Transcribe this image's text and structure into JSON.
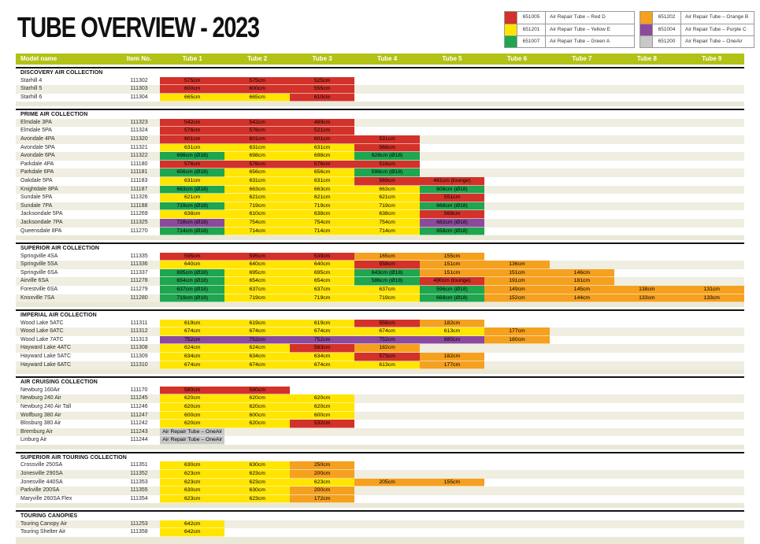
{
  "title": "TUBE OVERVIEW - 2023",
  "colors": {
    "red": "#d23229",
    "yellow": "#ffe500",
    "green": "#1fa64f",
    "orange": "#f5a01e",
    "purple": "#8c4a9c",
    "grey": "#c8c8c8",
    "header_bar": "#b2c216",
    "row_shade": "#efeee0",
    "section_gap": "#eae9d8"
  },
  "legend": [
    {
      "code": "651005",
      "label": "Air Repair Tube – Red D",
      "color": "red"
    },
    {
      "code": "651201",
      "label": "Air Repair Tube – Yellow E",
      "color": "yellow"
    },
    {
      "code": "651007",
      "label": "Air Repair Tube – Green A",
      "color": "green"
    },
    {
      "code": "651202",
      "label": "Air Repair Tube – Orange B",
      "color": "orange"
    },
    {
      "code": "651004",
      "label": "Air Repair Tube – Purple C",
      "color": "purple"
    },
    {
      "code": "651200",
      "label": "Air Repair Tube – OneAir",
      "color": "grey"
    }
  ],
  "columns": [
    "Model name",
    "Item No.",
    "Tube 1",
    "Tube 2",
    "Tube 3",
    "Tube 4",
    "Tube 5",
    "Tube 6",
    "Tube 7",
    "Tube 8",
    "Tube 9"
  ],
  "sections": [
    {
      "name": "DISCOVERY AIR COLLECTION",
      "stripe": "white",
      "rows": [
        {
          "m": "Starhill 4",
          "i": "111302",
          "t": [
            [
              "575cm",
              "red"
            ],
            [
              "575cm",
              "red"
            ],
            [
              "525cm",
              "red"
            ]
          ]
        },
        {
          "m": "Starhill 5",
          "i": "111303",
          "t": [
            [
              "600cm",
              "red"
            ],
            [
              "600cm",
              "red"
            ],
            [
              "555cm",
              "red"
            ]
          ]
        },
        {
          "m": "Starhill 6",
          "i": "111304",
          "t": [
            [
              "665cm",
              "yellow"
            ],
            [
              "665cm",
              "yellow"
            ],
            [
              "610cm",
              "red"
            ]
          ]
        }
      ]
    },
    {
      "name": "PRIME AIR COLLECTION",
      "stripe": "shade",
      "rows": [
        {
          "m": "Elmdale 3PA",
          "i": "111323",
          "t": [
            [
              "542cm",
              "red"
            ],
            [
              "542cm",
              "red"
            ],
            [
              "489cm",
              "red"
            ]
          ]
        },
        {
          "m": "Elmdale 5PA",
          "i": "111324",
          "t": [
            [
              "576cm",
              "red"
            ],
            [
              "576cm",
              "red"
            ],
            [
              "521cm",
              "red"
            ]
          ]
        },
        {
          "m": "Avondale 4PA",
          "i": "111320",
          "t": [
            [
              "601cm",
              "red"
            ],
            [
              "601cm",
              "red"
            ],
            [
              "601cm",
              "red"
            ],
            [
              "531cm",
              "red"
            ]
          ]
        },
        {
          "m": "Avondale 5PA",
          "i": "111321",
          "t": [
            [
              "631cm",
              "yellow"
            ],
            [
              "631cm",
              "yellow"
            ],
            [
              "631cm",
              "yellow"
            ],
            [
              "568cm",
              "red"
            ]
          ]
        },
        {
          "m": "Avondale 6PA",
          "i": "111322",
          "t": [
            [
              "698cm (Ø18)",
              "green"
            ],
            [
              "698cm",
              "yellow"
            ],
            [
              "698cm",
              "yellow"
            ],
            [
              "628cm (Ø18)",
              "green"
            ]
          ]
        },
        {
          "m": "Parkdale 4PA",
          "i": "111180",
          "t": [
            [
              "576cm",
              "red"
            ],
            [
              "576cm",
              "red"
            ],
            [
              "576cm",
              "red"
            ],
            [
              "516cm",
              "red"
            ]
          ]
        },
        {
          "m": "Parkdale 6PA",
          "i": "111181",
          "t": [
            [
              "656cm (Ø18)",
              "green"
            ],
            [
              "656cm",
              "yellow"
            ],
            [
              "656cm",
              "yellow"
            ],
            [
              "598cm (Ø18)",
              "green"
            ]
          ]
        },
        {
          "m": "Oakdale 5PA",
          "i": "111183",
          "t": [
            [
              "631cm",
              "yellow"
            ],
            [
              "631cm",
              "yellow"
            ],
            [
              "631cm",
              "yellow"
            ],
            [
              "569cm",
              "red"
            ],
            [
              "481cm (lounge)",
              "red"
            ]
          ]
        },
        {
          "m": "Knightdale 8PA",
          "i": "111187",
          "t": [
            [
              "663cm (Ø18)",
              "green"
            ],
            [
              "663cm",
              "yellow"
            ],
            [
              "663cm",
              "yellow"
            ],
            [
              "663cm",
              "yellow"
            ],
            [
              "608cm (Ø18)",
              "green"
            ]
          ]
        },
        {
          "m": "Sundale 5PA",
          "i": "111326",
          "t": [
            [
              "621cm",
              "yellow"
            ],
            [
              "621cm",
              "yellow"
            ],
            [
              "621cm",
              "yellow"
            ],
            [
              "621cm",
              "yellow"
            ],
            [
              "551cm",
              "red"
            ]
          ]
        },
        {
          "m": "Sundale 7PA",
          "i": "111188",
          "t": [
            [
              "719cm (Ø18)",
              "green"
            ],
            [
              "719cm",
              "yellow"
            ],
            [
              "719cm",
              "yellow"
            ],
            [
              "719cm",
              "yellow"
            ],
            [
              "668cm (Ø18)",
              "green"
            ]
          ]
        },
        {
          "m": "Jacksondale 5PA",
          "i": "111269",
          "t": [
            [
              "638cm",
              "yellow"
            ],
            [
              "610cm",
              "yellow"
            ],
            [
              "638cm",
              "yellow"
            ],
            [
              "638cm",
              "yellow"
            ],
            [
              "569cm",
              "red"
            ]
          ]
        },
        {
          "m": "Jacksondale 7PA",
          "i": "111325",
          "t": [
            [
              "728cm (Ø18)",
              "purple"
            ],
            [
              "754cm",
              "yellow"
            ],
            [
              "754cm",
              "yellow"
            ],
            [
              "754cm",
              "yellow"
            ],
            [
              "682cm (Ø18)",
              "purple"
            ]
          ]
        },
        {
          "m": "Queensdale 8PA",
          "i": "111270",
          "t": [
            [
              "714cm (Ø18)",
              "green"
            ],
            [
              "714cm",
              "yellow"
            ],
            [
              "714cm",
              "yellow"
            ],
            [
              "714cm",
              "yellow"
            ],
            [
              "658cm (Ø18)",
              "green"
            ]
          ]
        }
      ]
    },
    {
      "name": "SUPERIOR AIR COLLECTION",
      "stripe": "white",
      "rows": [
        {
          "m": "Springville 4SA",
          "i": "111335",
          "t": [
            [
              "595cm",
              "red"
            ],
            [
              "595cm",
              "red"
            ],
            [
              "539cm",
              "red"
            ],
            [
              "165cm",
              "orange"
            ],
            [
              "155cm",
              "orange"
            ]
          ]
        },
        {
          "m": "Springville 5SA",
          "i": "111336",
          "t": [
            [
              "640cm",
              "yellow"
            ],
            [
              "640cm",
              "yellow"
            ],
            [
              "640cm",
              "yellow"
            ],
            [
              "558cm",
              "red"
            ],
            [
              "151cm",
              "orange"
            ],
            [
              "136cm",
              "orange"
            ]
          ]
        },
        {
          "m": "Springville 6SA",
          "i": "111337",
          "t": [
            [
              "695cm (Ø18)",
              "green"
            ],
            [
              "695cm",
              "yellow"
            ],
            [
              "695cm",
              "yellow"
            ],
            [
              "643cm (Ø18)",
              "green"
            ],
            [
              "151cm",
              "orange"
            ],
            [
              "151cm",
              "orange"
            ],
            [
              "146cm",
              "orange"
            ]
          ]
        },
        {
          "m": "Airville 6SA",
          "i": "111278",
          "t": [
            [
              "654cm (Ø18)",
              "green"
            ],
            [
              "654cm",
              "yellow"
            ],
            [
              "654cm",
              "yellow"
            ],
            [
              "586cm (Ø18)",
              "green"
            ],
            [
              "490cm (lounge)",
              "red"
            ],
            [
              "191cm",
              "orange"
            ],
            [
              "181cm",
              "orange"
            ]
          ]
        },
        {
          "m": "Forestville 6SA",
          "i": "111279",
          "t": [
            [
              "637cm (Ø18)",
              "green"
            ],
            [
              "637cm",
              "yellow"
            ],
            [
              "637cm",
              "yellow"
            ],
            [
              "637cm",
              "yellow"
            ],
            [
              "596cm (Ø18)",
              "green"
            ],
            [
              "149cm",
              "orange"
            ],
            [
              "145cm",
              "orange"
            ],
            [
              "138cm",
              "orange"
            ],
            [
              "131cm",
              "orange"
            ]
          ]
        },
        {
          "m": "Knoxville 7SA",
          "i": "111280",
          "t": [
            [
              "719cm (Ø18)",
              "green"
            ],
            [
              "719cm",
              "yellow"
            ],
            [
              "719cm",
              "yellow"
            ],
            [
              "719cm",
              "yellow"
            ],
            [
              "668cm (Ø18)",
              "green"
            ],
            [
              "152cm",
              "orange"
            ],
            [
              "144cm",
              "orange"
            ],
            [
              "133cm",
              "orange"
            ],
            [
              "133cm",
              "orange"
            ]
          ]
        }
      ]
    },
    {
      "name": "IMPERIAL AIR COLLECTION",
      "stripe": "white",
      "rows": [
        {
          "m": "Wood Lake 5ATC",
          "i": "111311",
          "t": [
            [
              "619cm",
              "yellow"
            ],
            [
              "619cm",
              "yellow"
            ],
            [
              "619cm",
              "yellow"
            ],
            [
              "558cm",
              "red"
            ],
            [
              "182cm",
              "orange"
            ]
          ]
        },
        {
          "m": "Wood Lake 6ATC",
          "i": "111312",
          "t": [
            [
              "674cm",
              "yellow"
            ],
            [
              "674cm",
              "yellow"
            ],
            [
              "674cm",
              "yellow"
            ],
            [
              "674cm",
              "yellow"
            ],
            [
              "613cm",
              "yellow"
            ],
            [
              "177cm",
              "orange"
            ]
          ]
        },
        {
          "m": "Wood Lake 7ATC",
          "i": "111313",
          "t": [
            [
              "752cm",
              "purple"
            ],
            [
              "752cm",
              "purple"
            ],
            [
              "752cm",
              "purple"
            ],
            [
              "752cm",
              "purple"
            ],
            [
              "680cm",
              "purple"
            ],
            [
              "180cm",
              "orange"
            ]
          ]
        },
        {
          "m": "Hayward Lake 4ATC",
          "i": "111308",
          "t": [
            [
              "624cm",
              "yellow"
            ],
            [
              "624cm",
              "yellow"
            ],
            [
              "563cm",
              "red"
            ],
            [
              "182cm",
              "orange"
            ]
          ]
        },
        {
          "m": "Hayward Lake 5ATC",
          "i": "111309",
          "t": [
            [
              "634cm",
              "yellow"
            ],
            [
              "634cm",
              "yellow"
            ],
            [
              "634cm",
              "yellow"
            ],
            [
              "573cm",
              "red"
            ],
            [
              "182cm",
              "orange"
            ]
          ]
        },
        {
          "m": "Hayward Lake 6ATC",
          "i": "111310",
          "t": [
            [
              "674cm",
              "yellow"
            ],
            [
              "674cm",
              "yellow"
            ],
            [
              "674cm",
              "yellow"
            ],
            [
              "613cm",
              "yellow"
            ],
            [
              "177cm",
              "orange"
            ]
          ]
        }
      ]
    },
    {
      "name": "AIR CRUISING COLLECTION",
      "stripe": "white",
      "rows": [
        {
          "m": "Newburg 160Air",
          "i": "111170",
          "t": [
            [
              "580cm",
              "red"
            ],
            [
              "580cm",
              "red"
            ]
          ]
        },
        {
          "m": "Newburg 240 Air",
          "i": "111245",
          "t": [
            [
              "620cm",
              "yellow"
            ],
            [
              "620cm",
              "yellow"
            ],
            [
              "620cm",
              "yellow"
            ]
          ]
        },
        {
          "m": "Newburg 240 Air Tall",
          "i": "111246",
          "t": [
            [
              "620cm",
              "yellow"
            ],
            [
              "620cm",
              "yellow"
            ],
            [
              "620cm",
              "yellow"
            ]
          ]
        },
        {
          "m": "Wolfburg 380 Air",
          "i": "111247",
          "t": [
            [
              "600cm",
              "yellow"
            ],
            [
              "600cm",
              "yellow"
            ],
            [
              "600cm",
              "yellow"
            ]
          ]
        },
        {
          "m": "Blosburg 380 Air",
          "i": "111242",
          "t": [
            [
              "620cm",
              "yellow"
            ],
            [
              "620cm",
              "yellow"
            ],
            [
              "532cm",
              "red"
            ]
          ]
        },
        {
          "m": "Bremburg Air",
          "i": "111243",
          "t": [
            [
              "Air Repair Tube – OneAir",
              "grey"
            ]
          ]
        },
        {
          "m": "Linburg Air",
          "i": "111244",
          "t": [
            [
              "Air Repair Tube – OneAir",
              "grey"
            ]
          ]
        }
      ]
    },
    {
      "name": "SUPERIOR AIR TOURING COLLECTION",
      "stripe": "white",
      "rows": [
        {
          "m": "Crossville 250SA",
          "i": "111351",
          "t": [
            [
              "630cm",
              "yellow"
            ],
            [
              "630cm",
              "yellow"
            ],
            [
              "250cm",
              "orange"
            ]
          ]
        },
        {
          "m": "Jonesville 290SA",
          "i": "111352",
          "t": [
            [
              "623cm",
              "yellow"
            ],
            [
              "623cm",
              "yellow"
            ],
            [
              "200cm",
              "orange"
            ]
          ]
        },
        {
          "m": "Jonesville 440SA",
          "i": "111353",
          "t": [
            [
              "623cm",
              "yellow"
            ],
            [
              "623cm",
              "yellow"
            ],
            [
              "623cm",
              "yellow"
            ],
            [
              "205cm",
              "orange"
            ],
            [
              "155cm",
              "orange"
            ]
          ]
        },
        {
          "m": "Parkville 200SA",
          "i": "111355",
          "t": [
            [
              "630cm",
              "yellow"
            ],
            [
              "630cm",
              "yellow"
            ],
            [
              "200cm",
              "orange"
            ]
          ]
        },
        {
          "m": "Maryville 260SA Flex",
          "i": "111354",
          "t": [
            [
              "623cm",
              "yellow"
            ],
            [
              "623cm",
              "yellow"
            ],
            [
              "172cm",
              "orange"
            ]
          ]
        }
      ]
    },
    {
      "name": "TOURING CANOPIES",
      "stripe": "shade",
      "rows": [
        {
          "m": "Touring Canopy Air",
          "i": "111253",
          "t": [
            [
              "642cm",
              "yellow"
            ]
          ]
        },
        {
          "m": "Touring Shelter Air",
          "i": "111358",
          "t": [
            [
              "642cm",
              "yellow"
            ]
          ]
        }
      ]
    }
  ]
}
